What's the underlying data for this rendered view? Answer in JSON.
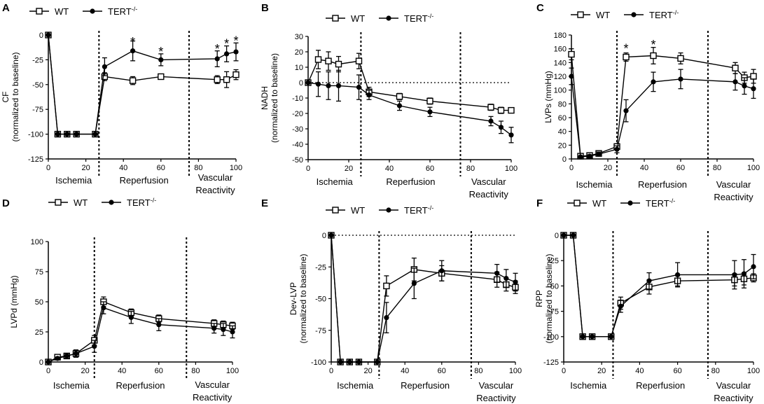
{
  "legend": {
    "wt": "WT",
    "tert_base": "TERT",
    "tert_sup": "-/-"
  },
  "phase_labels": {
    "ischemia": "Ischemia",
    "reperfusion": "Reperfusion",
    "vascular1": "Vascular",
    "vascular2": "Reactivity"
  },
  "chart_data": [
    {
      "panel": "A",
      "type": "line",
      "ylabel_lines": [
        "CF",
        "(normalized to baseline)"
      ],
      "xlim": [
        0,
        100
      ],
      "xticks": [
        0,
        20,
        40,
        60,
        80,
        100
      ],
      "ylim": [
        -125,
        0
      ],
      "yticks": [
        0,
        -25,
        -50,
        -75,
        -100,
        -125
      ],
      "dividers": [
        27,
        75
      ],
      "zero_line": false,
      "legend_pos": "top-left",
      "series": [
        {
          "name": "WT",
          "marker": "open-square",
          "x": [
            0,
            5,
            10,
            15,
            25,
            30,
            45,
            60,
            90,
            95,
            100
          ],
          "y": [
            0,
            -100,
            -100,
            -100,
            -100,
            -42,
            -46,
            -42,
            -45,
            -45,
            -40
          ],
          "err": [
            0,
            0,
            0,
            0,
            0,
            4,
            4,
            2,
            4,
            8,
            5
          ]
        },
        {
          "name": "TERT-/-",
          "marker": "filled-circle",
          "x": [
            0,
            5,
            10,
            15,
            25,
            30,
            45,
            60,
            90,
            95,
            100
          ],
          "y": [
            0,
            -100,
            -100,
            -100,
            -100,
            -32,
            -16,
            -25,
            -24,
            -19,
            -17
          ],
          "err": [
            0,
            0,
            0,
            0,
            0,
            9,
            10,
            6,
            8,
            8,
            9
          ]
        }
      ],
      "significance": [
        {
          "x": 45,
          "y": -7,
          "label": "*"
        },
        {
          "x": 60,
          "y": -17,
          "label": "*"
        },
        {
          "x": 90,
          "y": -14,
          "label": "*"
        },
        {
          "x": 95,
          "y": -9,
          "label": "*"
        },
        {
          "x": 100,
          "y": -6,
          "label": "*"
        }
      ]
    },
    {
      "panel": "B",
      "type": "line",
      "ylabel_lines": [
        "NADH",
        "(normalized to baseline)"
      ],
      "xlim": [
        0,
        100
      ],
      "xticks": [
        0,
        20,
        40,
        60,
        80,
        100
      ],
      "ylim": [
        -50,
        30
      ],
      "yticks": [
        30,
        20,
        10,
        0,
        -10,
        -20,
        -30,
        -40,
        -50
      ],
      "dividers": [
        26,
        75
      ],
      "zero_line": true,
      "legend_pos": "top-left",
      "series": [
        {
          "name": "WT",
          "marker": "open-square",
          "x": [
            0,
            5,
            10,
            15,
            25,
            30,
            45,
            60,
            90,
            95,
            100
          ],
          "y": [
            0,
            15,
            14,
            12,
            14,
            -6,
            -9,
            -12,
            -16,
            -18,
            -18
          ],
          "err": [
            0,
            6,
            6,
            5,
            5,
            3,
            2,
            2,
            2,
            2,
            1
          ]
        },
        {
          "name": "TERT-/-",
          "marker": "filled-circle",
          "x": [
            0,
            5,
            10,
            15,
            25,
            30,
            45,
            60,
            90,
            95,
            100
          ],
          "y": [
            0,
            -1,
            -2,
            -2,
            -3,
            -8,
            -15,
            -19,
            -25,
            -29,
            -34
          ],
          "err": [
            0,
            8,
            9,
            10,
            8,
            3,
            3,
            3,
            3,
            4,
            5
          ]
        }
      ],
      "significance": []
    },
    {
      "panel": "C",
      "type": "line",
      "ylabel_lines": [
        "LVPs (mmHg)"
      ],
      "xlim": [
        0,
        100
      ],
      "xticks": [
        0,
        20,
        40,
        60,
        80,
        100
      ],
      "ylim": [
        0,
        180
      ],
      "yticks": [
        0,
        20,
        40,
        60,
        80,
        100,
        120,
        140,
        160,
        180
      ],
      "dividers": [
        25,
        75
      ],
      "zero_line": false,
      "legend_pos": "top-left",
      "series": [
        {
          "name": "WT",
          "marker": "open-square",
          "x": [
            0,
            5,
            10,
            15,
            25,
            30,
            45,
            60,
            90,
            95,
            100
          ],
          "y": [
            152,
            4,
            5,
            8,
            18,
            148,
            150,
            146,
            132,
            118,
            120
          ],
          "err": [
            8,
            1,
            2,
            3,
            4,
            6,
            12,
            8,
            8,
            8,
            10
          ]
        },
        {
          "name": "TERT-/-",
          "marker": "filled-circle",
          "x": [
            0,
            5,
            10,
            15,
            25,
            30,
            45,
            60,
            90,
            95,
            100
          ],
          "y": [
            120,
            3,
            4,
            7,
            14,
            70,
            112,
            116,
            112,
            106,
            102
          ],
          "err": [
            12,
            1,
            2,
            3,
            5,
            16,
            14,
            14,
            12,
            12,
            14
          ]
        }
      ],
      "significance": [
        {
          "x": 30,
          "y": 160,
          "label": "*"
        },
        {
          "x": 45,
          "y": 166,
          "label": "*"
        }
      ]
    },
    {
      "panel": "D",
      "type": "line",
      "ylabel_lines": [
        "LVPd (mmHg)"
      ],
      "xlim": [
        0,
        100
      ],
      "xticks": [
        0,
        20,
        40,
        60,
        80,
        100
      ],
      "ylim": [
        0,
        100
      ],
      "yticks": [
        0,
        25,
        50,
        75,
        100
      ],
      "dividers": [
        25,
        75
      ],
      "zero_line": false,
      "legend_pos": "top-left",
      "series": [
        {
          "name": "WT",
          "marker": "open-square",
          "x": [
            0,
            5,
            10,
            15,
            25,
            30,
            45,
            60,
            90,
            95,
            100
          ],
          "y": [
            0,
            4,
            5,
            7,
            18,
            50,
            41,
            36,
            32,
            31,
            30
          ],
          "err": [
            0,
            1,
            2,
            3,
            4,
            4,
            3,
            3,
            3,
            3,
            3
          ]
        },
        {
          "name": "TERT-/-",
          "marker": "filled-circle",
          "x": [
            0,
            5,
            10,
            15,
            25,
            30,
            45,
            60,
            90,
            95,
            100
          ],
          "y": [
            0,
            3,
            5,
            7,
            13,
            45,
            37,
            31,
            28,
            27,
            25
          ],
          "err": [
            0,
            1,
            2,
            3,
            5,
            5,
            5,
            5,
            4,
            5,
            5
          ]
        }
      ],
      "significance": []
    },
    {
      "panel": "E",
      "type": "line",
      "ylabel_lines": [
        "Dev-LVP",
        "(normalized to baseline)"
      ],
      "xlim": [
        0,
        100
      ],
      "xticks": [
        0,
        20,
        40,
        60,
        80,
        100
      ],
      "ylim": [
        -100,
        0
      ],
      "yticks": [
        0,
        -25,
        -50,
        -75,
        -100
      ],
      "dividers": [
        26,
        76
      ],
      "zero_line": true,
      "legend_pos": "top-left",
      "series": [
        {
          "name": "WT",
          "marker": "open-square",
          "x": [
            0,
            5,
            10,
            15,
            25,
            30,
            45,
            60,
            90,
            95,
            100
          ],
          "y": [
            0,
            -100,
            -100,
            -100,
            -100,
            -40,
            -27,
            -30,
            -35,
            -39,
            -41
          ],
          "err": [
            0,
            0,
            0,
            0,
            0,
            8,
            9,
            6,
            6,
            5,
            5
          ]
        },
        {
          "name": "TERT-/-",
          "marker": "filled-circle",
          "x": [
            0,
            5,
            10,
            15,
            25,
            30,
            45,
            60,
            90,
            95,
            100
          ],
          "y": [
            0,
            -100,
            -100,
            -100,
            -100,
            -65,
            -38,
            -28,
            -30,
            -34,
            -37
          ],
          "err": [
            0,
            0,
            0,
            0,
            0,
            12,
            12,
            8,
            7,
            7,
            7
          ]
        }
      ],
      "significance": []
    },
    {
      "panel": "F",
      "type": "line",
      "ylabel_lines": [
        "RPP",
        "(normalized to baseline)"
      ],
      "xlim": [
        0,
        100
      ],
      "xticks": [
        0,
        20,
        40,
        60,
        80,
        100
      ],
      "ylim": [
        -125,
        0
      ],
      "yticks": [
        0,
        -25,
        -50,
        -75,
        -100,
        -125
      ],
      "dividers": [
        26,
        76
      ],
      "zero_line": false,
      "legend_pos": "top-left",
      "series": [
        {
          "name": "WT",
          "marker": "open-square",
          "x": [
            0,
            5,
            10,
            15,
            25,
            30,
            45,
            60,
            90,
            95,
            100
          ],
          "y": [
            0,
            0,
            -100,
            -100,
            -100,
            -67,
            -51,
            -45,
            -44,
            -43,
            -42
          ],
          "err": [
            0,
            0,
            0,
            0,
            0,
            6,
            7,
            5,
            6,
            6,
            4
          ]
        },
        {
          "name": "TERT-/-",
          "marker": "filled-circle",
          "x": [
            0,
            5,
            10,
            15,
            25,
            30,
            45,
            60,
            90,
            95,
            100
          ],
          "y": [
            0,
            0,
            -100,
            -100,
            -100,
            -70,
            -45,
            -39,
            -39,
            -38,
            -31
          ],
          "err": [
            0,
            0,
            0,
            0,
            0,
            6,
            8,
            12,
            14,
            14,
            12
          ]
        }
      ],
      "significance": []
    }
  ]
}
